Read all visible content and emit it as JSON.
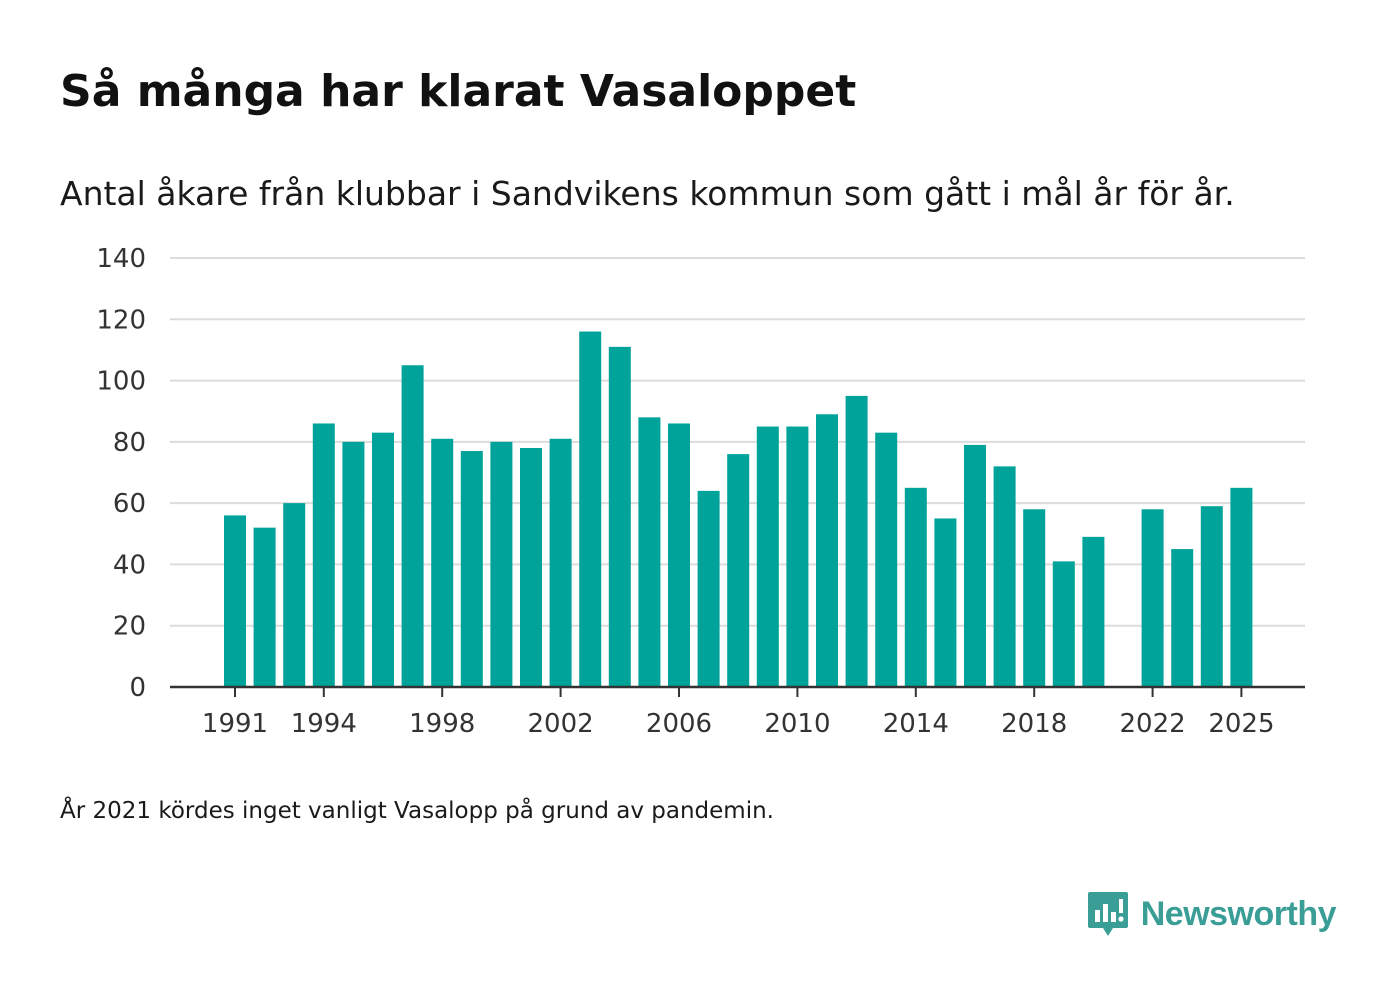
{
  "title": "Så många har klarat Vasaloppet",
  "subtitle": "Antal åkare från klubbar i Sandvikens kommun som gått i mål år för år.",
  "footnote": "År 2021 kördes inget vanligt Vasalopp på grund av pandemin.",
  "brand": {
    "name": "Newsworthy",
    "icon": "newsworthy-logo-icon"
  },
  "colors": {
    "bar": "#00a39a",
    "grid": "#dcdcdc",
    "axis": "#333333",
    "brand": "#3a9e97"
  },
  "chart_data": {
    "type": "bar",
    "title": "Så många har klarat Vasaloppet",
    "xlabel": "",
    "ylabel": "",
    "ylim": [
      0,
      140
    ],
    "yticks": [
      0,
      20,
      40,
      60,
      80,
      100,
      120,
      140
    ],
    "xtick_labels": [
      "1991",
      "1994",
      "1998",
      "2002",
      "2006",
      "2010",
      "2014",
      "2018",
      "2022",
      "2025"
    ],
    "categories": [
      "1991",
      "1992",
      "1993",
      "1994",
      "1995",
      "1996",
      "1997",
      "1998",
      "1999",
      "2000",
      "2001",
      "2002",
      "2003",
      "2004",
      "2005",
      "2006",
      "2007",
      "2008",
      "2009",
      "2010",
      "2011",
      "2012",
      "2013",
      "2014",
      "2015",
      "2016",
      "2017",
      "2018",
      "2019",
      "2020",
      "2021",
      "2022",
      "2023",
      "2024",
      "2025"
    ],
    "values": [
      56,
      52,
      60,
      86,
      80,
      83,
      105,
      81,
      77,
      80,
      78,
      81,
      116,
      111,
      88,
      86,
      64,
      76,
      85,
      85,
      89,
      95,
      83,
      65,
      55,
      79,
      72,
      58,
      41,
      49,
      null,
      58,
      45,
      59,
      65
    ],
    "grid": true
  }
}
